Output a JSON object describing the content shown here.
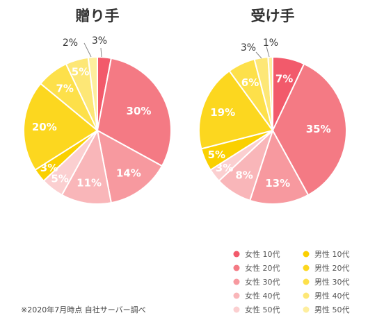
{
  "chart_data": [
    {
      "type": "pie",
      "title": "贈り手",
      "slices": [
        {
          "category": "女性 10代",
          "value": 3,
          "label": "3%"
        },
        {
          "category": "女性 20代",
          "value": 30,
          "label": "30%"
        },
        {
          "category": "女性 30代",
          "value": 14,
          "label": "14%"
        },
        {
          "category": "女性 40代",
          "value": 11,
          "label": "11%"
        },
        {
          "category": "女性 50代",
          "value": 5,
          "label": "5%"
        },
        {
          "category": "男性 10代",
          "value": 3,
          "label": "3%"
        },
        {
          "category": "男性 20代",
          "value": 20,
          "label": "20%"
        },
        {
          "category": "男性 30代",
          "value": 7,
          "label": "7%"
        },
        {
          "category": "男性 40代",
          "value": 5,
          "label": "5%"
        },
        {
          "category": "男性 50代",
          "value": 2,
          "label": "2%"
        }
      ]
    },
    {
      "type": "pie",
      "title": "受け手",
      "slices": [
        {
          "category": "女性 10代",
          "value": 7,
          "label": "7%"
        },
        {
          "category": "女性 20代",
          "value": 35,
          "label": "35%"
        },
        {
          "category": "女性 30代",
          "value": 13,
          "label": "13%"
        },
        {
          "category": "女性 40代",
          "value": 8,
          "label": "8%"
        },
        {
          "category": "女性 50代",
          "value": 3,
          "label": "3%"
        },
        {
          "category": "男性 10代",
          "value": 5,
          "label": "5%"
        },
        {
          "category": "男性 20代",
          "value": 19,
          "label": "19%"
        },
        {
          "category": "男性 30代",
          "value": 6,
          "label": "6%"
        },
        {
          "category": "男性 40代",
          "value": 3,
          "label": "3%"
        },
        {
          "category": "男性 50代",
          "value": 1,
          "label": "1%"
        }
      ]
    }
  ],
  "legend": {
    "placement": "bottom-right",
    "items": [
      {
        "label": "女性 10代",
        "color": "#f25a6b"
      },
      {
        "label": "女性 20代",
        "color": "#f47a84"
      },
      {
        "label": "女性 30代",
        "color": "#f7999f"
      },
      {
        "label": "女性 40代",
        "color": "#f9b6b9"
      },
      {
        "label": "女性 50代",
        "color": "#fbcfd0"
      },
      {
        "label": "男性 10代",
        "color": "#fad000"
      },
      {
        "label": "男性 20代",
        "color": "#fcd71f"
      },
      {
        "label": "男性 30代",
        "color": "#fde04a"
      },
      {
        "label": "男性 40代",
        "color": "#fde776"
      },
      {
        "label": "男性 50代",
        "color": "#feee9e"
      }
    ]
  },
  "footnote": "※2020年7月時点 自社サーバー調べ"
}
